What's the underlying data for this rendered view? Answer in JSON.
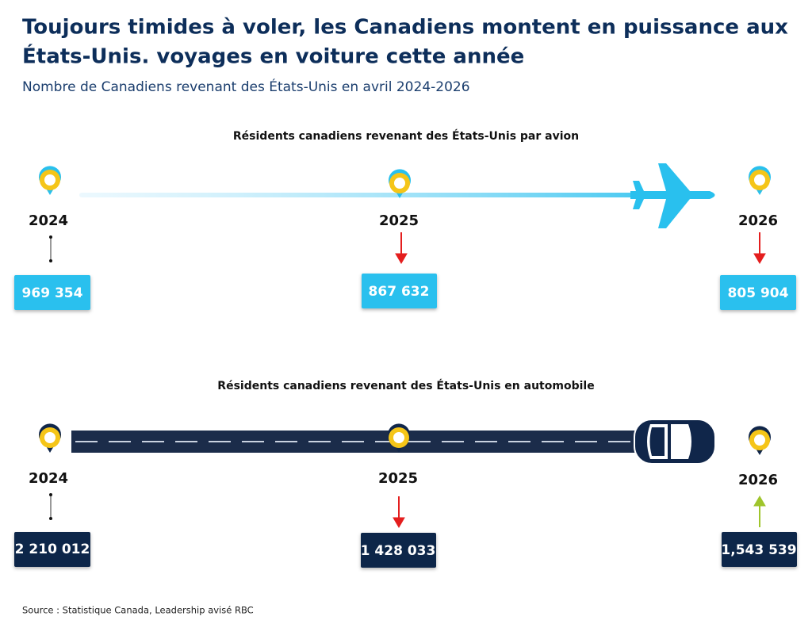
{
  "header": {
    "title_lines": [
      "Toujours timides à voler, les Canadiens montent en puissance aux",
      "États-Unis.   voyages en voiture cette année"
    ],
    "subtitle": "Nombre de Canadiens revenant des États-Unis en avril 2024-2026"
  },
  "panels": [
    {
      "heading": "Résidents canadiens revenant des États-Unis par avion",
      "points": [
        {
          "year": "2024",
          "value": "969 354"
        },
        {
          "year": "2025",
          "value": "867 632"
        },
        {
          "year": "2026",
          "value": "805 904"
        }
      ]
    },
    {
      "heading": "Résidents canadiens revenant des États-Unis en automobile",
      "points": [
        {
          "year": "2024",
          "value": "2 210 012"
        },
        {
          "year": "2025",
          "value": "1 428 033"
        },
        {
          "year": "2026",
          "value": "1,543 539"
        }
      ]
    }
  ],
  "footer": {
    "source": "Source : Statistique Canada, Leadership avisé RBC"
  }
}
